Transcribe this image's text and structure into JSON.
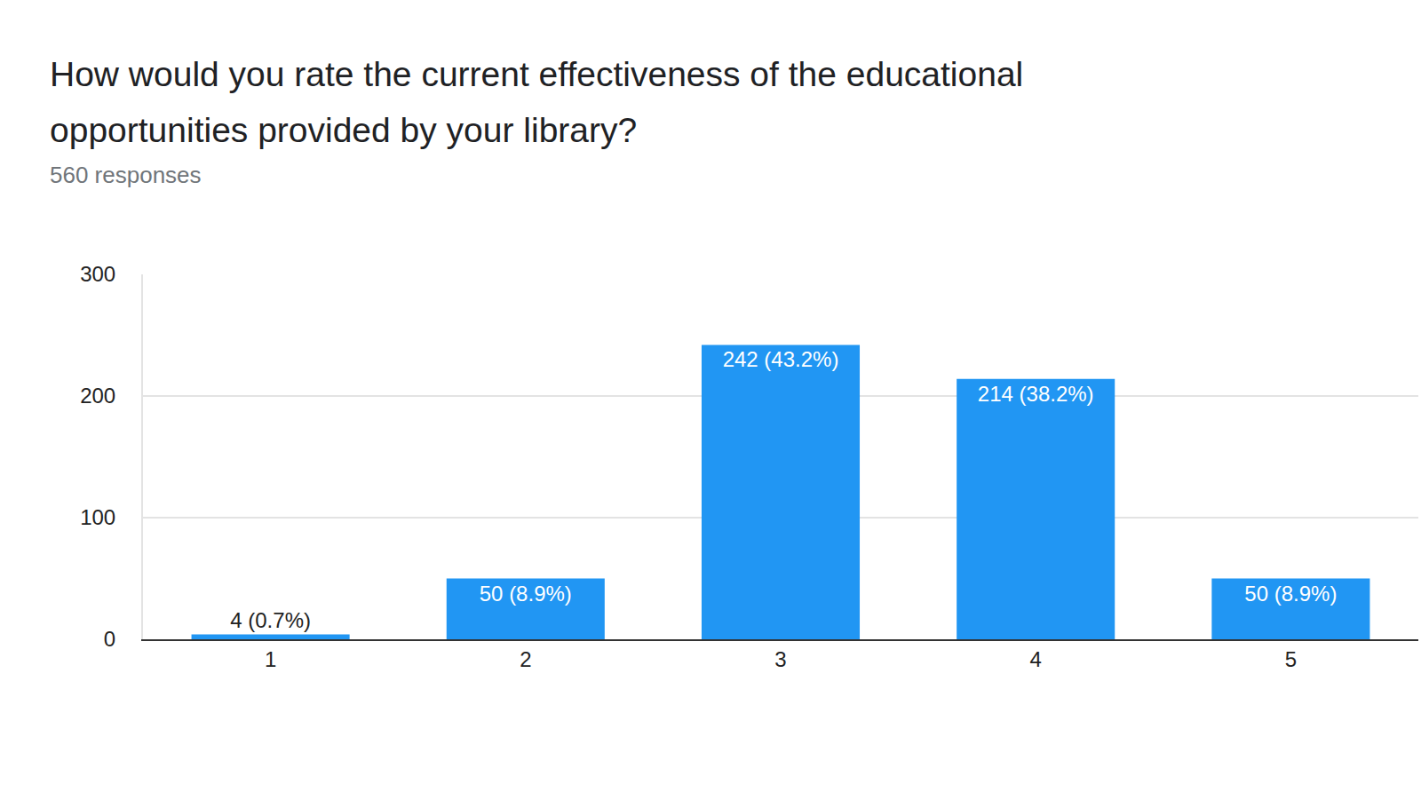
{
  "chart_data": {
    "type": "bar",
    "title": "How would you rate the current effectiveness of the educational opportunities provided by your library?",
    "subtitle": "560 responses",
    "categories": [
      "1",
      "2",
      "3",
      "4",
      "5"
    ],
    "values": [
      4,
      50,
      242,
      214,
      50
    ],
    "value_labels": [
      "4 (0.7%)",
      "50 (8.9%)",
      "242 (43.2%)",
      "214 (38.2%)",
      "50 (8.9%)"
    ],
    "color": "#2196f3",
    "ylim": [
      0,
      300
    ],
    "yticks": [
      0,
      100,
      200,
      300
    ],
    "grid": true,
    "data_labels": true
  }
}
